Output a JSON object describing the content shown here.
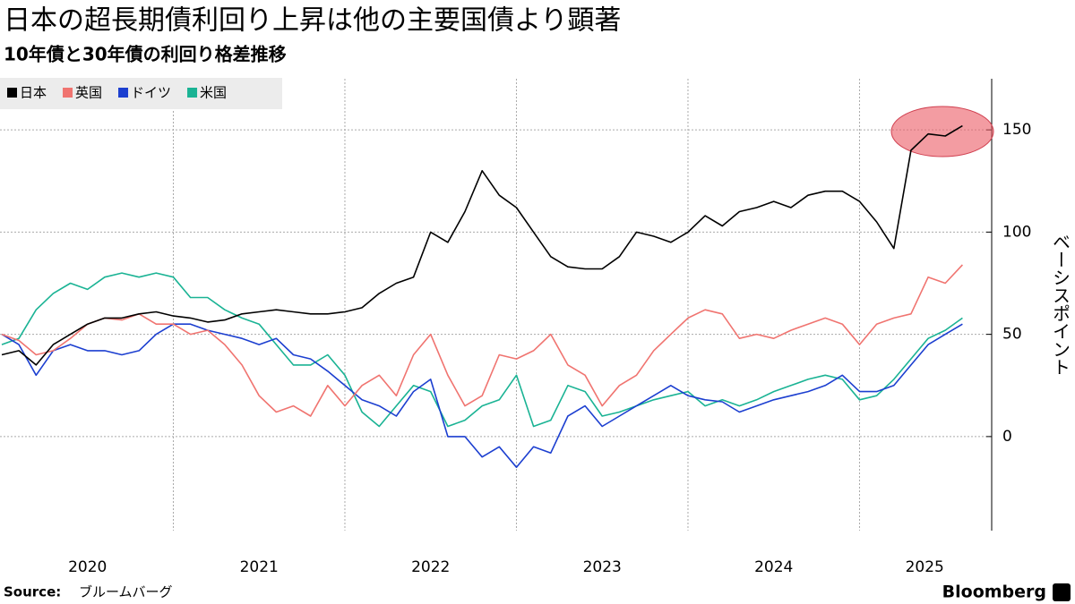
{
  "chart_data": {
    "type": "line",
    "title": "日本の超長期債利回り上昇は他の主要国債より顕著",
    "subtitle": "10年債と30年債の利回り格差推移",
    "y_label": "ベーシスポイント",
    "source_label": "Source:",
    "source": "ブルームバーグ",
    "brand": "Bloomberg",
    "x": [
      2020.0,
      2020.1,
      2020.2,
      2020.3,
      2020.4,
      2020.5,
      2020.6,
      2020.7,
      2020.8,
      2020.9,
      2021.0,
      2021.1,
      2021.2,
      2021.3,
      2021.4,
      2021.5,
      2021.6,
      2021.7,
      2021.8,
      2021.9,
      2022.0,
      2022.1,
      2022.2,
      2022.3,
      2022.4,
      2022.5,
      2022.6,
      2022.7,
      2022.8,
      2022.9,
      2023.0,
      2023.1,
      2023.2,
      2023.3,
      2023.4,
      2023.5,
      2023.6,
      2023.7,
      2023.8,
      2023.9,
      2024.0,
      2024.1,
      2024.2,
      2024.3,
      2024.4,
      2024.5,
      2024.6,
      2024.7,
      2024.8,
      2024.9,
      2025.0,
      2025.1,
      2025.2,
      2025.3,
      2025.4,
      2025.5,
      2025.6
    ],
    "series": [
      {
        "name": "日本",
        "color": "#000000",
        "values": [
          40,
          42,
          35,
          45,
          50,
          55,
          58,
          58,
          60,
          61,
          59,
          58,
          56,
          57,
          60,
          61,
          62,
          61,
          60,
          60,
          61,
          63,
          70,
          75,
          78,
          100,
          95,
          110,
          130,
          118,
          112,
          100,
          88,
          83,
          82,
          82,
          88,
          100,
          98,
          95,
          100,
          108,
          103,
          110,
          112,
          115,
          112,
          118,
          120,
          120,
          115,
          105,
          92,
          140,
          148,
          147,
          152
        ]
      },
      {
        "name": "英国",
        "color": "#f07470",
        "values": [
          50,
          47,
          40,
          42,
          48,
          55,
          58,
          57,
          60,
          55,
          55,
          50,
          52,
          45,
          35,
          20,
          12,
          15,
          10,
          25,
          15,
          25,
          30,
          20,
          40,
          50,
          30,
          15,
          20,
          40,
          38,
          42,
          50,
          35,
          30,
          15,
          25,
          30,
          42,
          50,
          58,
          62,
          60,
          48,
          50,
          48,
          52,
          55,
          58,
          55,
          45,
          55,
          58,
          60,
          78,
          75,
          84
        ]
      },
      {
        "name": "ドイツ",
        "color": "#1c3fd0",
        "values": [
          50,
          45,
          30,
          42,
          45,
          42,
          42,
          40,
          42,
          50,
          55,
          55,
          52,
          50,
          48,
          45,
          48,
          40,
          38,
          32,
          25,
          18,
          15,
          10,
          22,
          28,
          0,
          0,
          -10,
          -5,
          -15,
          -5,
          -8,
          10,
          15,
          5,
          10,
          15,
          20,
          25,
          20,
          18,
          17,
          12,
          15,
          18,
          20,
          22,
          25,
          30,
          22,
          22,
          25,
          35,
          45,
          50,
          55
        ]
      },
      {
        "name": "米国",
        "color": "#1ab394",
        "values": [
          45,
          48,
          62,
          70,
          75,
          72,
          78,
          80,
          78,
          80,
          78,
          68,
          68,
          62,
          58,
          55,
          45,
          35,
          35,
          40,
          30,
          12,
          5,
          15,
          25,
          22,
          5,
          8,
          15,
          18,
          30,
          5,
          8,
          25,
          22,
          10,
          12,
          15,
          18,
          20,
          22,
          15,
          18,
          15,
          18,
          22,
          25,
          28,
          30,
          28,
          18,
          20,
          28,
          38,
          48,
          52,
          58
        ]
      }
    ],
    "xlim": [
      2020.0,
      2025.76
    ],
    "xticks": [
      2021,
      2022,
      2023,
      2024,
      2025
    ],
    "year_labels": [
      "2020",
      "2021",
      "2022",
      "2023",
      "2024",
      "2025"
    ],
    "ylim": [
      -46,
      175
    ],
    "yticks": [
      0,
      50,
      100,
      150
    ],
    "grid": true,
    "legend": "top-left"
  }
}
